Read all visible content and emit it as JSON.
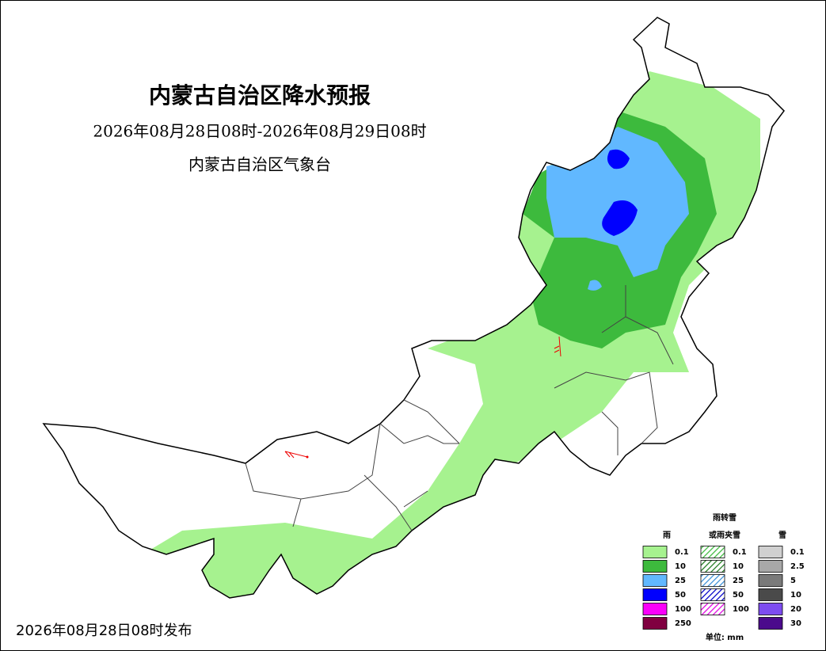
{
  "header": {
    "title": "内蒙古自治区降水预报",
    "period": "2026年08月28日08时-2026年08月29日08时",
    "issuer": "内蒙古自治区气象台"
  },
  "footer": {
    "published": "2026年08月28日08时发布"
  },
  "legend": {
    "groups": [
      {
        "title_lines": [
          "雨"
        ],
        "style": "solid",
        "items": [
          {
            "label": "0.1",
            "color": "#a6f28f"
          },
          {
            "label": "10",
            "color": "#3dba3d"
          },
          {
            "label": "25",
            "color": "#61b8ff"
          },
          {
            "label": "50",
            "color": "#0000fe"
          },
          {
            "label": "100",
            "color": "#fa00fa"
          },
          {
            "label": "250",
            "color": "#800040"
          }
        ]
      },
      {
        "title_lines": [
          "雨转雪",
          "或雨夹雪"
        ],
        "style": "hatch",
        "items": [
          {
            "label": "0.1",
            "color": "#3dba3d"
          },
          {
            "label": "10",
            "color": "#1e7a1e"
          },
          {
            "label": "25",
            "color": "#3a8fd8"
          },
          {
            "label": "50",
            "color": "#0000c8"
          },
          {
            "label": "100",
            "color": "#e000e0"
          }
        ]
      },
      {
        "title_lines": [
          "雪"
        ],
        "style": "solid",
        "items": [
          {
            "label": "0.1",
            "color": "#d0d0d0"
          },
          {
            "label": "2.5",
            "color": "#a8a8a8"
          },
          {
            "label": "5",
            "color": "#7a7a7a"
          },
          {
            "label": "10",
            "color": "#4a4a4a"
          },
          {
            "label": "20",
            "color": "#7d4cf0"
          },
          {
            "label": "30",
            "color": "#4b0a8c"
          }
        ]
      }
    ],
    "unit": "单位: mm"
  }
}
